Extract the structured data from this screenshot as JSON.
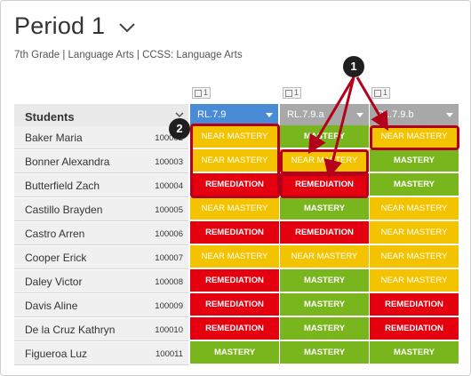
{
  "header": {
    "title": "Period 1",
    "subtitle": "7th Grade  |  Language Arts  |  CCSS: Language Arts"
  },
  "table": {
    "students_header": "Students",
    "count_badges": [
      "1",
      "1",
      "1"
    ],
    "columns": [
      {
        "label": "RL.7.9",
        "color": "#4a8bd6"
      },
      {
        "label": "RL.7.9.a",
        "color": "#a8a8a8"
      },
      {
        "label": "RL.7.9.b",
        "color": "#a8a8a8"
      }
    ],
    "rows": [
      {
        "name": "Baker Maria",
        "id": "100002",
        "scores": [
          "NEAR MASTERY",
          "MASTERY",
          "NEAR MASTERY"
        ]
      },
      {
        "name": "Bonner Alexandra",
        "id": "100003",
        "scores": [
          "NEAR MASTERY",
          "NEAR MASTERY",
          "MASTERY"
        ]
      },
      {
        "name": "Butterfield Zach",
        "id": "100004",
        "scores": [
          "REMEDIATION",
          "REMEDIATION",
          "MASTERY"
        ]
      },
      {
        "name": "Castillo Brayden",
        "id": "100005",
        "scores": [
          "NEAR MASTERY",
          "MASTERY",
          "NEAR MASTERY"
        ]
      },
      {
        "name": "Castro Arren",
        "id": "100006",
        "scores": [
          "REMEDIATION",
          "REMEDIATION",
          "NEAR MASTERY"
        ]
      },
      {
        "name": "Cooper Erick",
        "id": "100007",
        "scores": [
          "NEAR MASTERY",
          "NEAR MASTERY",
          "NEAR MASTERY"
        ]
      },
      {
        "name": "Daley Victor",
        "id": "100008",
        "scores": [
          "REMEDIATION",
          "MASTERY",
          "NEAR MASTERY"
        ]
      },
      {
        "name": "Davis Aline",
        "id": "100009",
        "scores": [
          "REMEDIATION",
          "MASTERY",
          "REMEDIATION"
        ]
      },
      {
        "name": "De la Cruz Kathryn",
        "id": "100010",
        "scores": [
          "REMEDIATION",
          "MASTERY",
          "REMEDIATION"
        ]
      },
      {
        "name": "Figueroa Luz",
        "id": "100011",
        "scores": [
          "MASTERY",
          "MASTERY",
          "MASTERY"
        ]
      }
    ]
  },
  "colors": {
    "near_mastery": "#f4c300",
    "remediation": "#e4000f",
    "mastery": "#79b51c",
    "annotation": "#b3001b"
  },
  "callouts": [
    "1",
    "2"
  ]
}
